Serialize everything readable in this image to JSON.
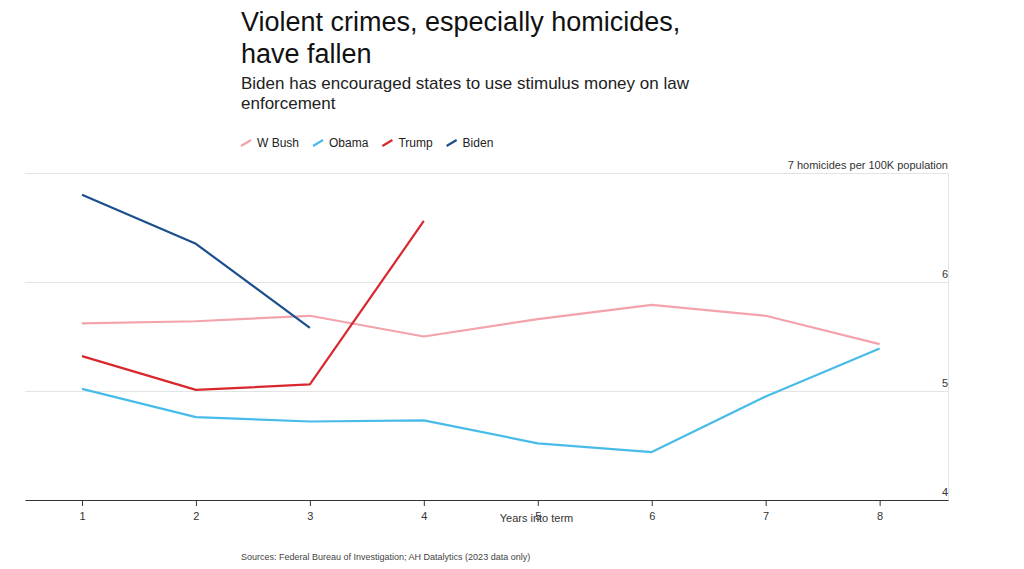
{
  "chart_data": {
    "type": "line",
    "title": "Violent crimes, especially homicides, have fallen",
    "subtitle": "Biden has encouraged states to use stimulus money on law enforcement",
    "xlabel": "Years into term",
    "source": "Sources: Federal Bureau of Investigation; AH Datalytics (2023 data only)",
    "x": [
      1,
      2,
      3,
      4,
      5,
      6,
      7,
      8
    ],
    "xlim": [
      0.5,
      8.6
    ],
    "xticks": [
      1,
      2,
      3,
      4,
      5,
      6,
      7,
      8
    ],
    "ylim": [
      4,
      7
    ],
    "yticks": [
      4,
      5,
      6,
      {
        "value": 7,
        "label": "7 homicides per 100K population"
      }
    ],
    "grid": true,
    "legend": "top",
    "series": [
      {
        "name": "W Bush",
        "color": "#f4a3ad",
        "values": [
          5.62,
          5.64,
          5.69,
          5.5,
          5.66,
          5.79,
          5.69,
          5.43
        ]
      },
      {
        "name": "Obama",
        "color": "#48bbe8",
        "values": [
          5.02,
          4.76,
          4.72,
          4.73,
          4.52,
          4.44,
          4.95,
          5.39
        ]
      },
      {
        "name": "Trump",
        "color": "#d9272e",
        "values": [
          5.32,
          5.01,
          5.06,
          6.56,
          null,
          null,
          null,
          null
        ]
      },
      {
        "name": "Biden",
        "color": "#1b4f8e",
        "values": [
          6.8,
          6.35,
          5.58,
          null,
          null,
          null,
          null,
          null
        ]
      }
    ]
  }
}
